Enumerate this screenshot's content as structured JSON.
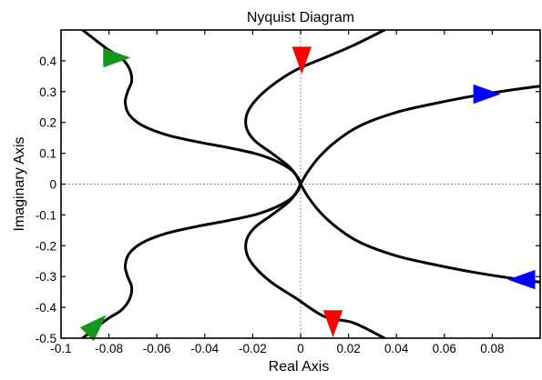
{
  "chart_data": {
    "type": "line",
    "title": "Nyquist Diagram",
    "xlabel": "Real Axis",
    "ylabel": "Imaginary Axis",
    "xlim": [
      -0.1,
      0.1
    ],
    "ylim": [
      -0.5,
      0.5
    ],
    "xticks": [
      -0.1,
      -0.08,
      -0.06,
      -0.04,
      -0.02,
      0,
      0.02,
      0.04,
      0.06,
      0.08
    ],
    "xtick_labels": [
      "-0.1",
      "-0.08",
      "-0.06",
      "-0.04",
      "-0.02",
      "0",
      "0.02",
      "0.04",
      "0.06",
      "0.08"
    ],
    "yticks": [
      -0.5,
      -0.4,
      -0.3,
      -0.2,
      -0.1,
      0,
      0.1,
      0.2,
      0.3,
      0.4
    ],
    "ytick_labels": [
      "-0.5",
      "-0.4",
      "-0.3",
      "-0.2",
      "-0.1",
      "0",
      "0.1",
      "0.2",
      "0.3",
      "0.4"
    ],
    "grid": "dotted zero lines only",
    "line_color": "#000000",
    "series": [
      {
        "curve_id": "green-upper",
        "points": [
          [
            -0.091,
            0.5
          ],
          [
            -0.081,
            0.44
          ],
          [
            -0.075,
            0.41
          ],
          [
            -0.0715,
            0.375
          ],
          [
            -0.0705,
            0.335
          ],
          [
            -0.0722,
            0.3
          ],
          [
            -0.0732,
            0.265
          ],
          [
            -0.0715,
            0.225
          ],
          [
            -0.066,
            0.19
          ],
          [
            -0.056,
            0.16
          ],
          [
            -0.043,
            0.137
          ],
          [
            -0.03,
            0.118
          ],
          [
            -0.018,
            0.097
          ],
          [
            -0.009,
            0.07
          ],
          [
            -0.003,
            0.04
          ],
          [
            0,
            0
          ]
        ],
        "arrow": {
          "at": [
            -0.0765,
            0.41
          ],
          "direction": "right",
          "color": "#13961d"
        }
      },
      {
        "curve_id": "green-lower",
        "points": [
          [
            0,
            0
          ],
          [
            -0.003,
            -0.04
          ],
          [
            -0.009,
            -0.07
          ],
          [
            -0.018,
            -0.097
          ],
          [
            -0.03,
            -0.118
          ],
          [
            -0.043,
            -0.137
          ],
          [
            -0.056,
            -0.16
          ],
          [
            -0.066,
            -0.19
          ],
          [
            -0.0715,
            -0.225
          ],
          [
            -0.0732,
            -0.265
          ],
          [
            -0.0722,
            -0.3
          ],
          [
            -0.0705,
            -0.335
          ],
          [
            -0.0715,
            -0.375
          ],
          [
            -0.075,
            -0.41
          ],
          [
            -0.081,
            -0.44
          ],
          [
            -0.091,
            -0.5
          ]
        ],
        "arrow": {
          "at": [
            -0.085,
            -0.455
          ],
          "direction": "up-right",
          "color": "#13961d"
        }
      },
      {
        "curve_id": "red-upper",
        "points": [
          [
            0.035,
            0.5
          ],
          [
            0.022,
            0.45
          ],
          [
            0.01,
            0.41
          ],
          [
            -0.002,
            0.37
          ],
          [
            -0.012,
            0.32
          ],
          [
            -0.019,
            0.27
          ],
          [
            -0.0225,
            0.225
          ],
          [
            -0.0225,
            0.18
          ],
          [
            -0.019,
            0.14
          ],
          [
            -0.012,
            0.1
          ],
          [
            -0.005,
            0.058
          ],
          [
            -0.001,
            0.02
          ],
          [
            0,
            0
          ]
        ],
        "arrow": {
          "at": [
            0.0005,
            0.4
          ],
          "direction": "down",
          "color": "#ff0000"
        }
      },
      {
        "curve_id": "red-lower",
        "points": [
          [
            0,
            0
          ],
          [
            -0.001,
            -0.02
          ],
          [
            -0.005,
            -0.058
          ],
          [
            -0.012,
            -0.1
          ],
          [
            -0.019,
            -0.14
          ],
          [
            -0.0225,
            -0.18
          ],
          [
            -0.0225,
            -0.225
          ],
          [
            -0.019,
            -0.27
          ],
          [
            -0.012,
            -0.32
          ],
          [
            -0.002,
            -0.37
          ],
          [
            0.01,
            -0.43
          ],
          [
            0.022,
            -0.45
          ],
          [
            0.035,
            -0.5
          ]
        ],
        "arrow": {
          "at": [
            0.0135,
            -0.455
          ],
          "direction": "down",
          "color": "#ff0000"
        }
      },
      {
        "curve_id": "blue-upper",
        "points": [
          [
            0.1,
            0.318
          ],
          [
            0.085,
            0.302
          ],
          [
            0.07,
            0.283
          ],
          [
            0.055,
            0.26
          ],
          [
            0.04,
            0.233
          ],
          [
            0.025,
            0.19
          ],
          [
            0.015,
            0.14
          ],
          [
            0.008,
            0.09
          ],
          [
            0.003,
            0.04
          ],
          [
            0,
            0
          ]
        ],
        "arrow": {
          "at": [
            0.078,
            0.292
          ],
          "direction": "right",
          "color": "#0000ff"
        }
      },
      {
        "curve_id": "blue-lower",
        "points": [
          [
            0,
            0
          ],
          [
            0.003,
            -0.04
          ],
          [
            0.008,
            -0.09
          ],
          [
            0.015,
            -0.14
          ],
          [
            0.025,
            -0.19
          ],
          [
            0.04,
            -0.233
          ],
          [
            0.055,
            -0.26
          ],
          [
            0.07,
            -0.283
          ],
          [
            0.085,
            -0.302
          ],
          [
            0.1,
            -0.318
          ]
        ],
        "arrow": {
          "at": [
            0.092,
            -0.31
          ],
          "direction": "left",
          "color": "#0000ff"
        }
      }
    ]
  }
}
